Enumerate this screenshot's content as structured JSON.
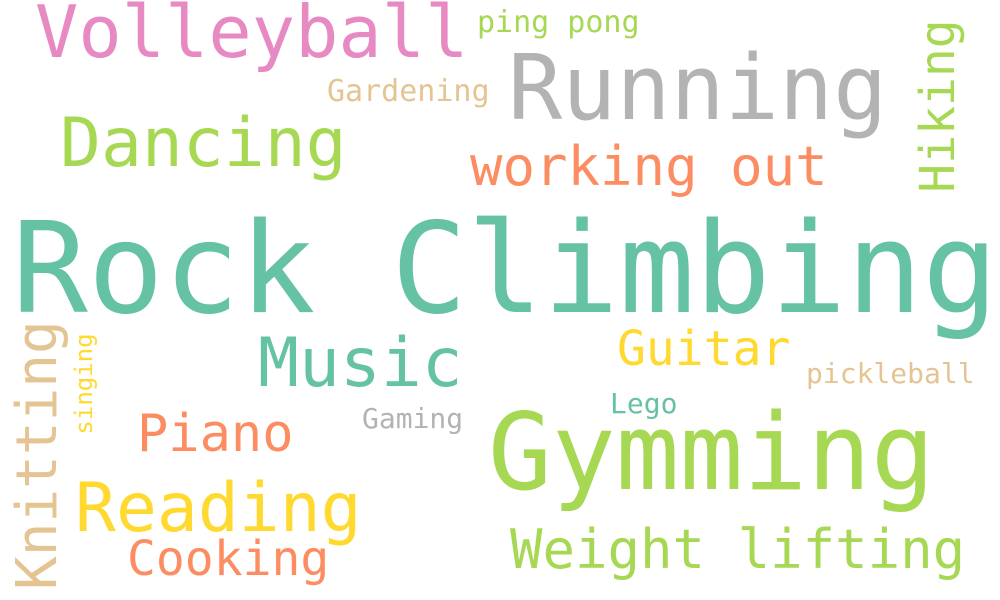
{
  "words": {
    "rock_climbing": {
      "text": "Rock Climbing",
      "color": "#66c2a5"
    },
    "gymming": {
      "text": "Gymming",
      "color": "#a6d854"
    },
    "running": {
      "text": "Running",
      "color": "#b3b3b3"
    },
    "volleyball": {
      "text": "Volleyball",
      "color": "#e78ac3"
    },
    "dancing": {
      "text": "Dancing",
      "color": "#a6d854"
    },
    "music": {
      "text": "Music",
      "color": "#66c2a5"
    },
    "reading": {
      "text": "Reading",
      "color": "#ffd92f"
    },
    "weight_lifting": {
      "text": "Weight lifting",
      "color": "#a6d854"
    },
    "working_out": {
      "text": "working out",
      "color": "#fc8d62"
    },
    "knitting": {
      "text": "Knitting",
      "color": "#e5c494"
    },
    "hiking": {
      "text": "Hiking",
      "color": "#a6d854"
    },
    "guitar": {
      "text": "Guitar",
      "color": "#ffd92f"
    },
    "piano": {
      "text": "Piano",
      "color": "#fc8d62"
    },
    "cooking": {
      "text": "Cooking",
      "color": "#fc8d62"
    },
    "ping_pong": {
      "text": "ping pong",
      "color": "#a6d854"
    },
    "gardening": {
      "text": "Gardening",
      "color": "#e5c494"
    },
    "pickleball": {
      "text": "pickleball",
      "color": "#e5c494"
    },
    "gaming": {
      "text": "Gaming",
      "color": "#b3b3b3"
    },
    "singing": {
      "text": "singing",
      "color": "#ffd92f"
    },
    "lego": {
      "text": "Lego",
      "color": "#66c2a5"
    }
  }
}
